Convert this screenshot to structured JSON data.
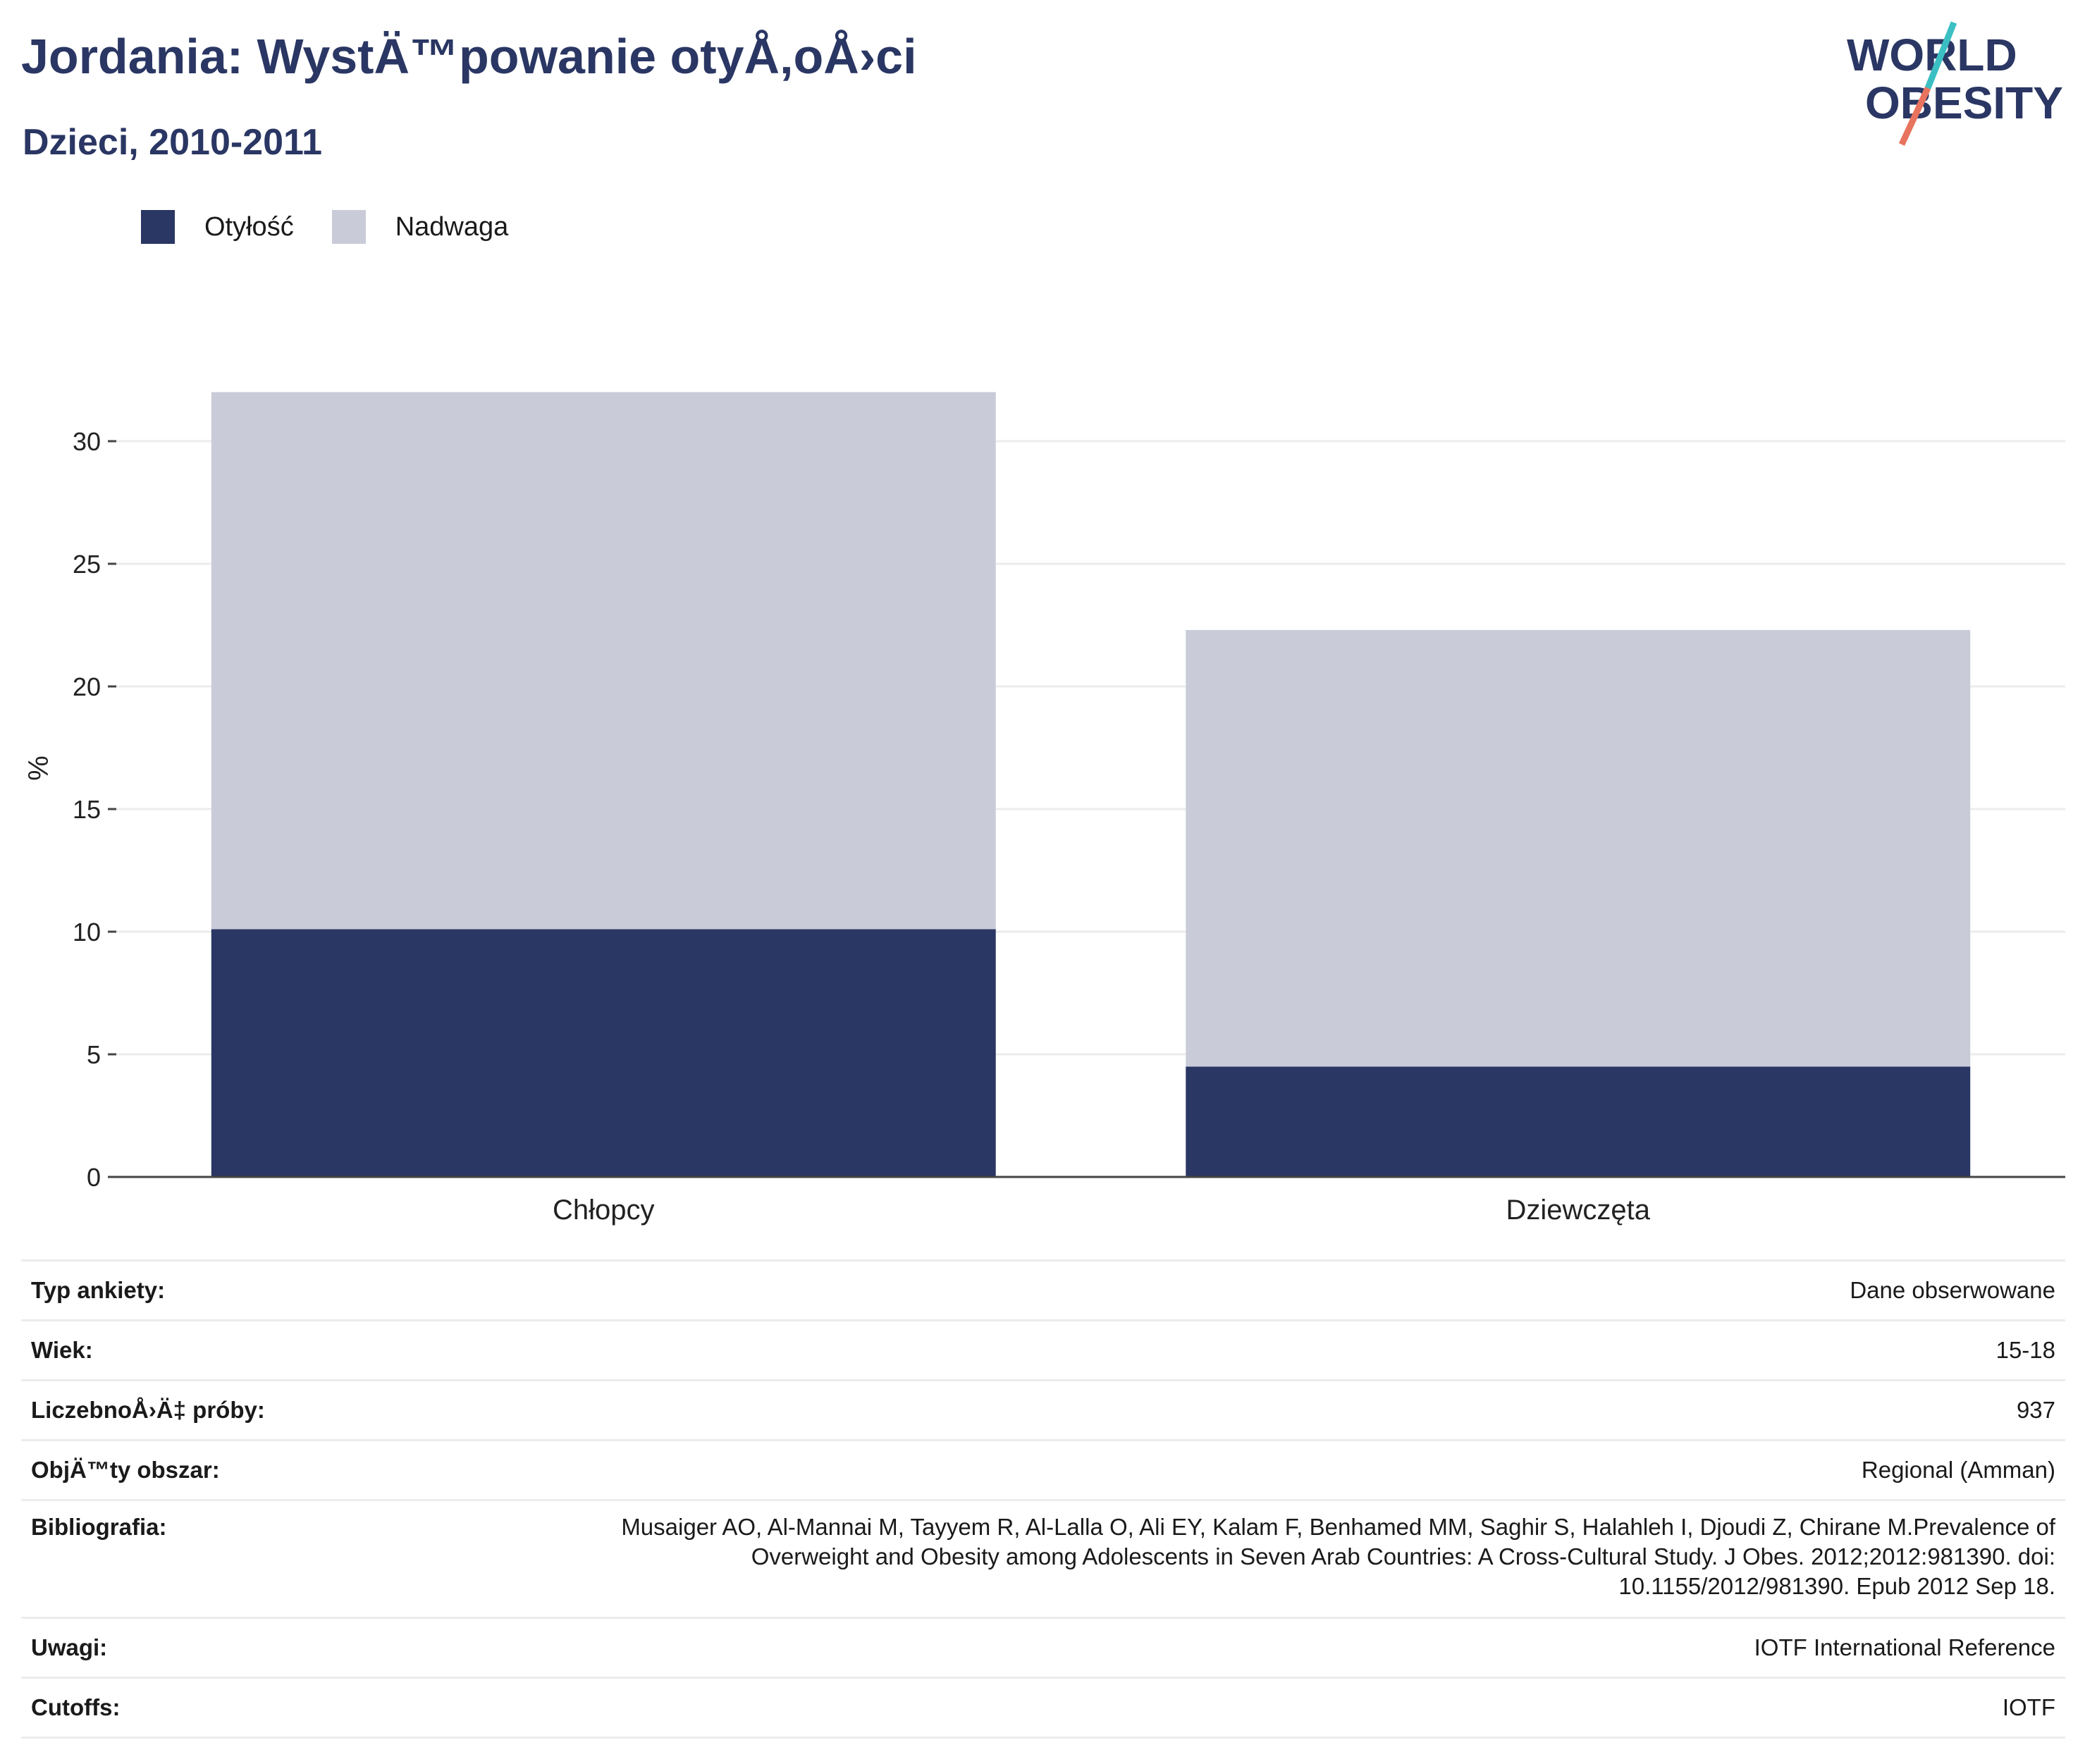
{
  "header": {
    "title": "Jordania: WystÄ™powanie otyÅ‚oÅ›ci",
    "subtitle": "Dzieci, 2010-2011"
  },
  "logo": {
    "line1": "WORLD",
    "line2": "OBESITY",
    "colors": {
      "text": "#2a3663",
      "slash_top": "#3bbfc2",
      "slash_bottom": "#e8735e"
    }
  },
  "legend": [
    {
      "label": "Otyłość",
      "color": "#2a3663"
    },
    {
      "label": "Nadwaga",
      "color": "#c9ccd8"
    }
  ],
  "chart_data": {
    "type": "bar",
    "stacked": true,
    "categories": [
      "Chłopcy",
      "Dziewczęta"
    ],
    "series": [
      {
        "name": "Otyłość",
        "values": [
          10.1,
          4.5
        ],
        "color": "#2a3663"
      },
      {
        "name": "Nadwaga",
        "values": [
          21.9,
          17.8
        ],
        "color": "#c9ccd8"
      }
    ],
    "ylabel": "%",
    "ylim": [
      0,
      32
    ],
    "yticks": [
      0,
      5,
      10,
      15,
      20,
      25,
      30
    ],
    "grid": true,
    "legend_position": "top-left"
  },
  "info": [
    {
      "key": "Typ ankiety:",
      "value": "Dane obserwowane"
    },
    {
      "key": "Wiek:",
      "value": "15-18"
    },
    {
      "key": "LiczebnoÅ›Ä‡ próby:",
      "value": "937"
    },
    {
      "key": "ObjÄ™ty obszar:",
      "value": "Regional (Amman)"
    },
    {
      "key": "Bibliografia:",
      "value": "Musaiger AO, Al-Mannai M, Tayyem R, Al-Lalla O, Ali EY, Kalam F, Benhamed MM, Saghir S, Halahleh I, Djoudi Z, Chirane M.Prevalence of Overweight and Obesity among Adolescents in Seven Arab Countries: A Cross-Cultural Study. J Obes. 2012;2012:981390. doi: 10.1155/2012/981390. Epub 2012 Sep 18."
    },
    {
      "key": "Uwagi:",
      "value": "IOTF International Reference"
    },
    {
      "key": "Cutoffs:",
      "value": "IOTF"
    }
  ]
}
